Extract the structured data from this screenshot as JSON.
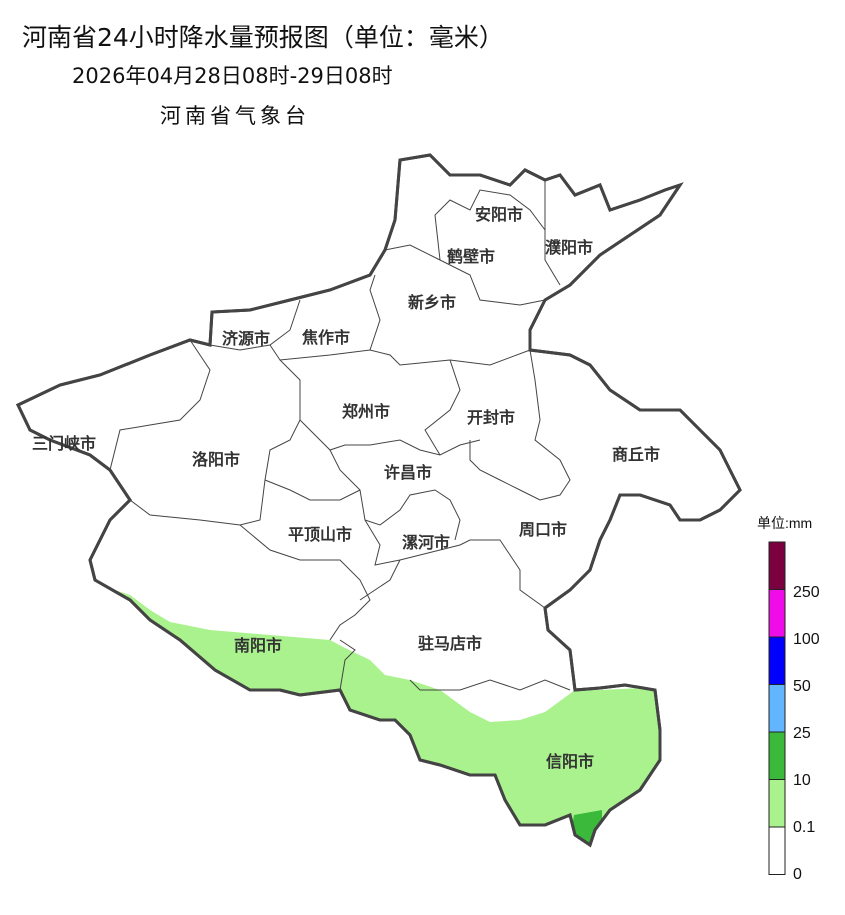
{
  "header": {
    "title": "河南省24小时降水量预报图（单位：毫米）",
    "subtitle": "2026年04月28日08时-29日08时",
    "issuer": "河南省气象台"
  },
  "map": {
    "cities": [
      "安阳市",
      "鹤壁市",
      "濮阳市",
      "新乡市",
      "济源市",
      "焦作市",
      "三门峡市",
      "洛阳市",
      "郑州市",
      "开封市",
      "商丘市",
      "许昌市",
      "平顶山市",
      "漯河市",
      "周口市",
      "南阳市",
      "驻马店市",
      "信阳市"
    ]
  },
  "legend": {
    "unit": "单位:mm",
    "labels": [
      "250",
      "100",
      "50",
      "25",
      "10",
      "0.1",
      "0"
    ],
    "colors": [
      "#7a0040",
      "#f00ce8",
      "#0000ff",
      "#62b6ff",
      "#3bb93b",
      "#aaf28e",
      "#ffffff"
    ]
  }
}
